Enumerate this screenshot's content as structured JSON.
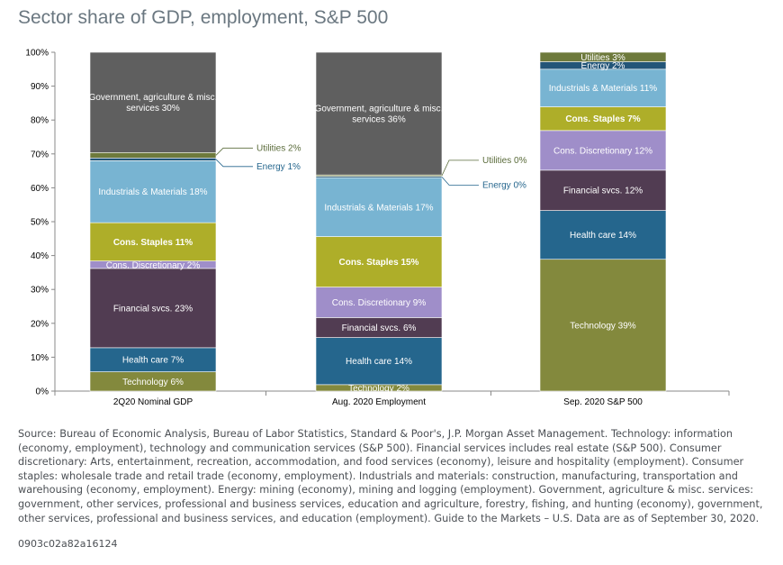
{
  "title": "Sector share of GDP, employment, S&P 500",
  "source_note": "Source: Bureau of Economic Analysis, Bureau of Labor Statistics, Standard & Poor's, J.P. Morgan Asset Management. Technology: information (economy, employment), technology and communication services (S&P 500). Financial services includes real estate (S&P 500). Consumer discretionary: Arts, entertainment, recreation, accommodation, and food services (economy), leisure and hospitality (employment). Consumer staples: wholesale trade and retail trade (economy, employment). Industrials and materials: construction, manufacturing, transportation and warehousing (economy, employment). Energy: mining (economy), mining and logging (employment). Government, agriculture & misc. services: government, other services, professional and business services, education and agriculture, forestry, fishing, and hunting (economy), government, other services, professional and business services, and education (employment). Guide to the Markets – U.S. Data are as of September 30, 2020.",
  "code": "0903c02a82a16124",
  "chart_data": {
    "type": "bar",
    "stacked": true,
    "title": "Sector share of GDP, employment, S&P 500",
    "ylim": [
      0,
      100
    ],
    "yticks": [
      "0%",
      "10%",
      "20%",
      "30%",
      "40%",
      "50%",
      "60%",
      "70%",
      "80%",
      "90%",
      "100%"
    ],
    "grid": false,
    "legend": "none",
    "categories": [
      "2Q20 Nominal GDP",
      "Aug. 2020 Employment",
      "Sep. 2020 S&P 500"
    ],
    "series": [
      {
        "name": "Technology",
        "color": "#83893d",
        "text_color": "#ffffff",
        "bold": false,
        "values": [
          5.7,
          1.9,
          38.9
        ],
        "labels": [
          "Technology  6%",
          "Technology  2%",
          "Technology  39%"
        ]
      },
      {
        "name": "Health care",
        "color": "#25668d",
        "text_color": "#ffffff",
        "bold": false,
        "values": [
          7.1,
          13.9,
          14.4
        ],
        "labels": [
          "Health  care 7%",
          "Health  care 14%",
          "Health  care 14%"
        ]
      },
      {
        "name": "Financial svcs.",
        "color": "#513c52",
        "text_color": "#ffffff",
        "bold": false,
        "values": [
          23.4,
          5.9,
          11.9
        ],
        "labels": [
          "Financial svcs.  23%",
          "Financial svcs.  6%",
          "Financial svcs.  12%"
        ]
      },
      {
        "name": "Cons. Discretionary",
        "color": "#9f8ec9",
        "text_color": "#ffffff",
        "bold": false,
        "values": [
          2.2,
          9.0,
          11.7
        ],
        "labels": [
          "Cons. Discretionary 2%",
          "Cons. Discretionary 9%",
          "Cons. Discretionary 12%"
        ]
      },
      {
        "name": "Cons. Staples",
        "color": "#aeae29",
        "text_color": "#ffffff",
        "bold": true,
        "values": [
          11.3,
          14.9,
          7.0
        ],
        "labels": [
          "Cons. Staples  11%",
          "Cons. Staples  15%",
          "Cons. Staples  7%"
        ]
      },
      {
        "name": "Industrials & Materials",
        "color": "#78b4d2",
        "text_color": "#ffffff",
        "bold": false,
        "values": [
          18.3,
          17.4,
          11.1
        ],
        "labels": [
          "Industrials & Materials  18%",
          "Industrials & Materials  17%",
          "Industrials & Materials  11%"
        ]
      },
      {
        "name": "Energy",
        "color": "#235578",
        "text_color": "#ffffff",
        "bold": false,
        "values": [
          0.8,
          0.4,
          2.2
        ],
        "labels": [
          "Energy 1%",
          "Energy 0%",
          "Energy  2%"
        ]
      },
      {
        "name": "Utilities",
        "color": "#6e7a3c",
        "text_color": "#ffffff",
        "bold": false,
        "values": [
          1.6,
          0.4,
          2.8
        ],
        "labels": [
          "Utilities  2%",
          "Utilities  0%",
          "Utilities  3%"
        ]
      },
      {
        "name": "Government, agriculture & misc. services",
        "color": "#5f5f5f",
        "text_color": "#ffffff",
        "bold": false,
        "values": [
          29.6,
          36.2,
          0
        ],
        "labels": [
          "Government,  agriculture & misc. services 30%",
          "Government,  agriculture & misc. services 36%",
          ""
        ]
      }
    ],
    "callouts": {
      "utilities_color": "#5a6b3a",
      "energy_color": "#25668d"
    }
  }
}
